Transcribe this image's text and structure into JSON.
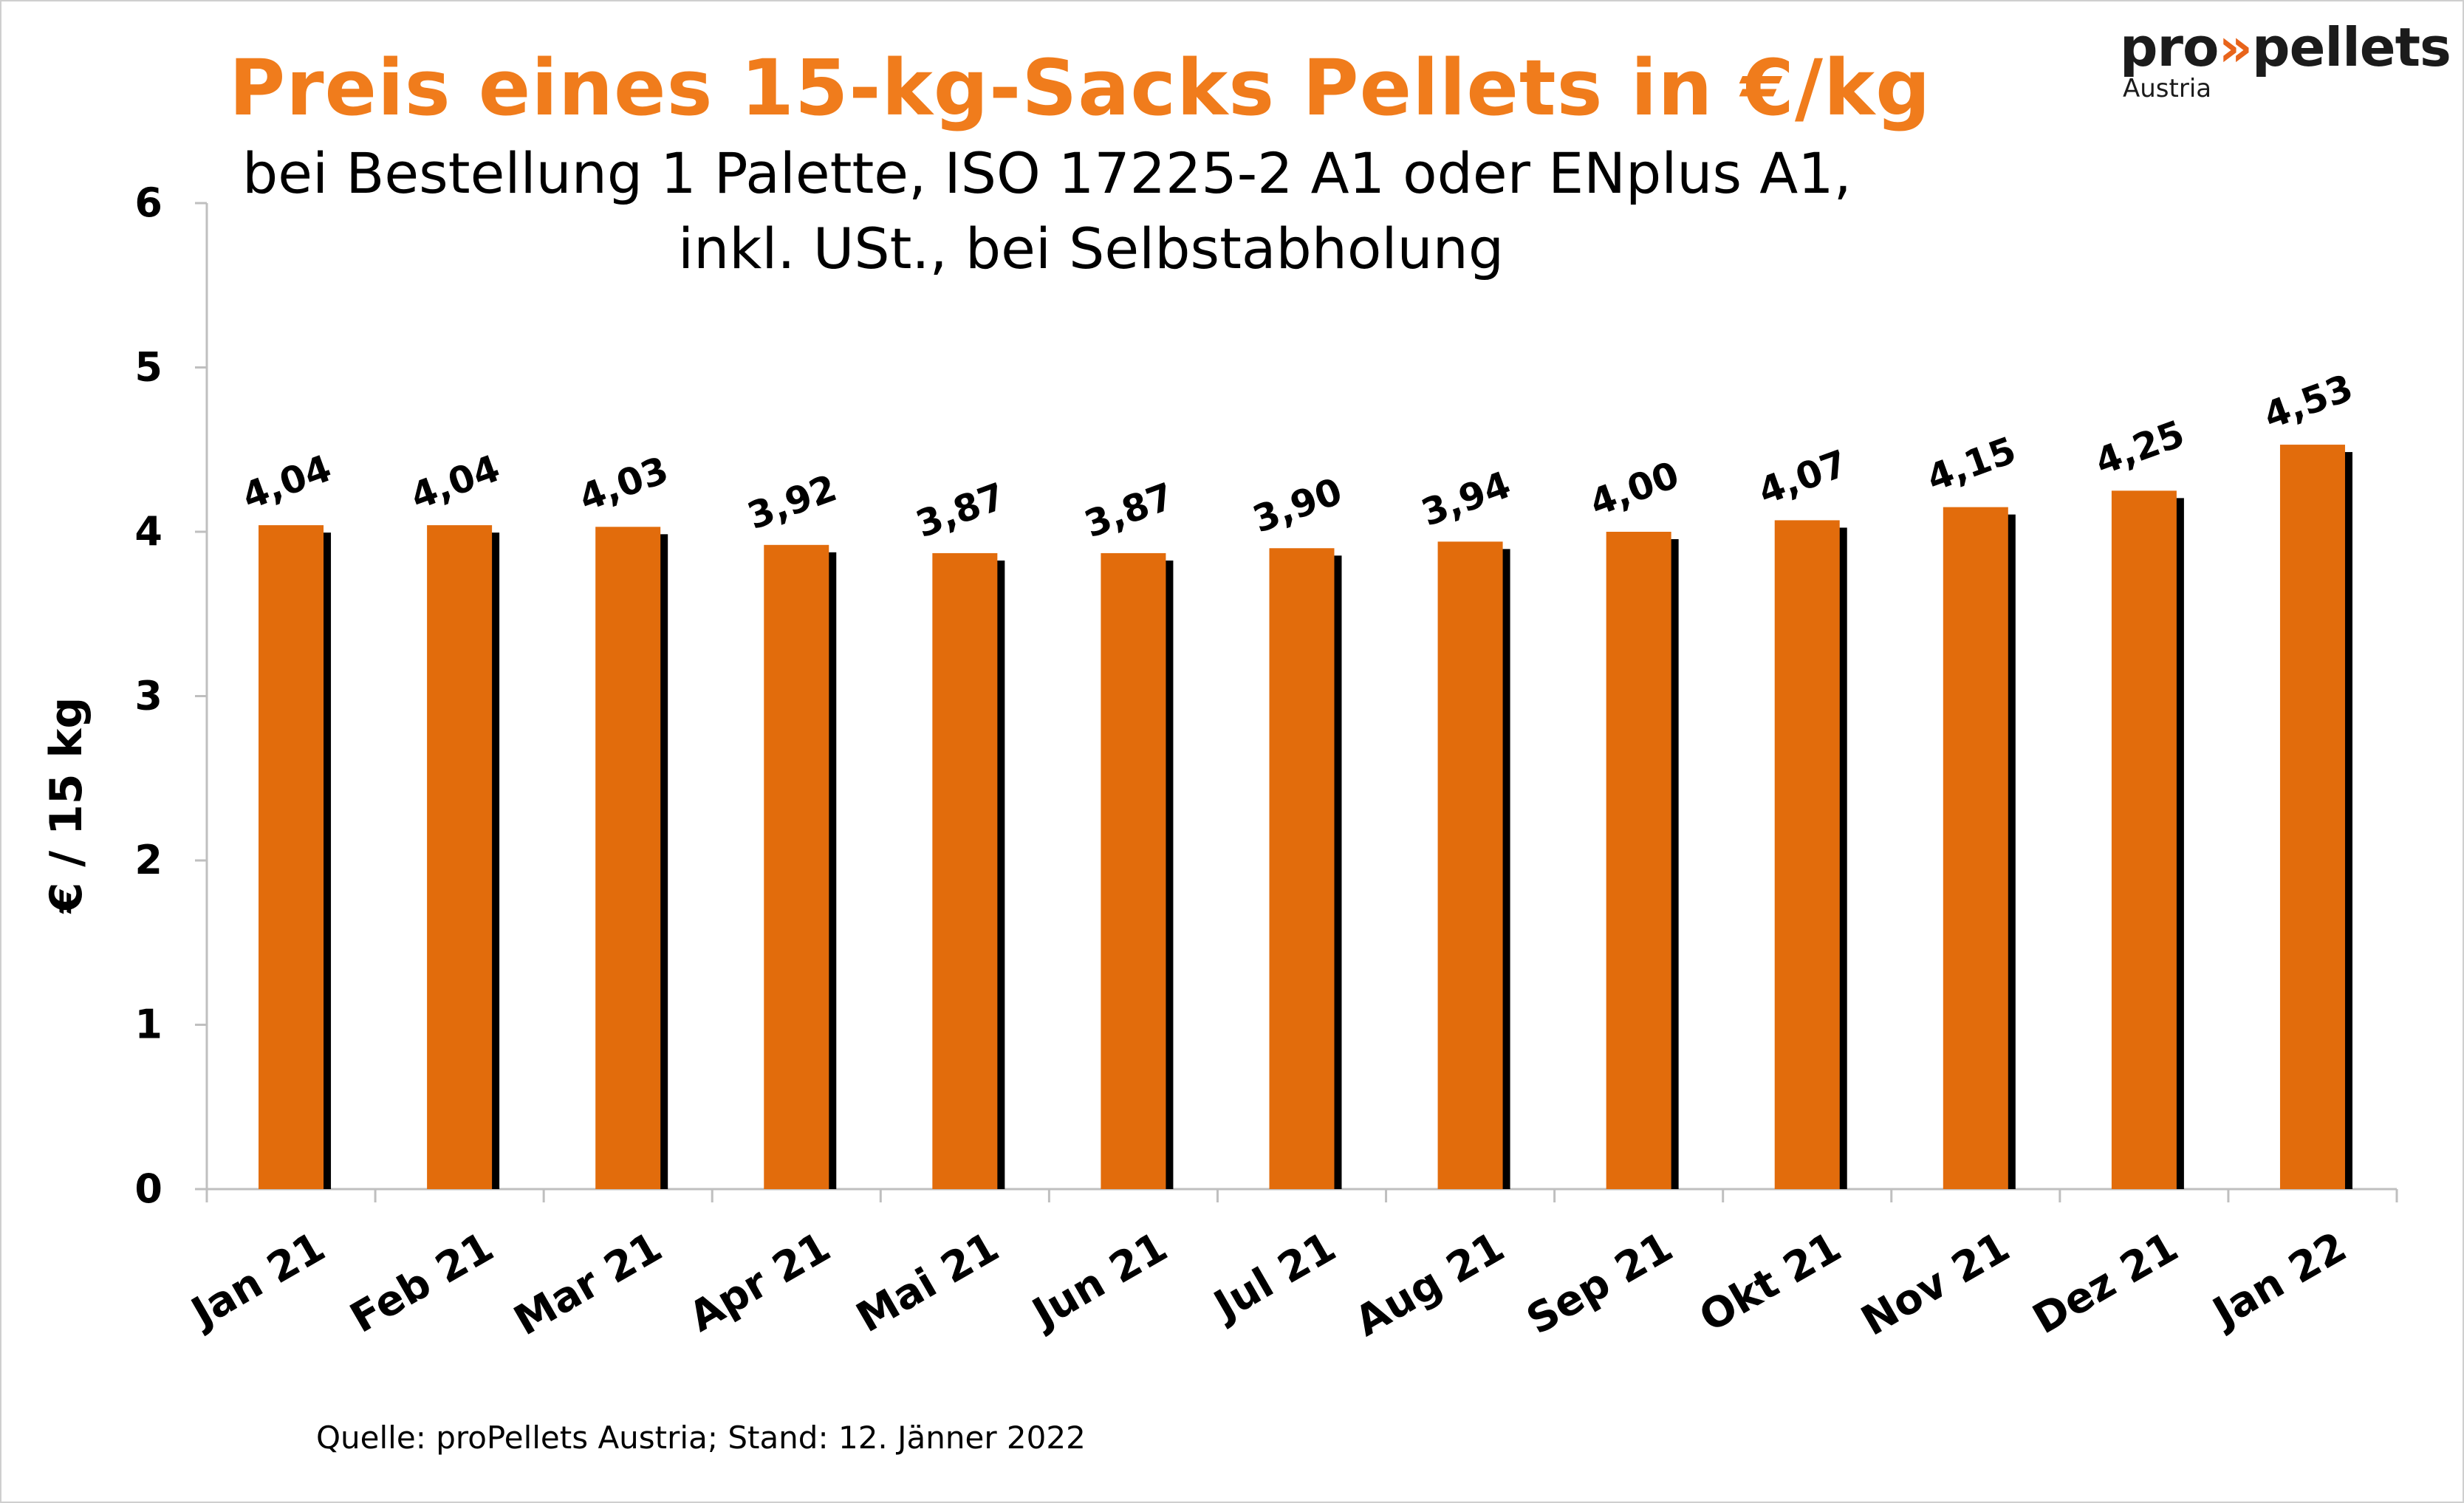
{
  "title": "Preis eines 15-kg-Sacks Pellets in €/kg",
  "subtitle_line1": "bei Bestellung 1 Palette, ISO 17225-2 A1 oder ENplus A1,",
  "subtitle_line2": "inkl. USt., bei Selbstabholung",
  "logo": {
    "brand_left": "pro",
    "chevron": "»",
    "brand_right": "pellets",
    "region": "Austria"
  },
  "source": "Quelle: proPellets Austria; Stand: 12. Jänner 2022",
  "colors": {
    "bar": "#e26c0c",
    "shadow": "#000000",
    "title": "#f07c1c",
    "axis": "#bfbfbf"
  },
  "chart_data": {
    "type": "bar",
    "title": "Preis eines 15-kg-Sacks Pellets in €/kg",
    "xlabel": "",
    "ylabel": "€ / 15 kg",
    "ylim": [
      0,
      6
    ],
    "yticks": [
      "0",
      "1",
      "2",
      "3",
      "4",
      "5",
      "6"
    ],
    "grid": false,
    "categories": [
      "Jan 21",
      "Feb 21",
      "Mar 21",
      "Apr 21",
      "Mai 21",
      "Jun 21",
      "Jul 21",
      "Aug 21",
      "Sep 21",
      "Okt 21",
      "Nov 21",
      "Dez 21",
      "Jan 22"
    ],
    "values": [
      4.04,
      4.04,
      4.03,
      3.92,
      3.87,
      3.87,
      3.9,
      3.94,
      4.0,
      4.07,
      4.15,
      4.25,
      4.53
    ],
    "data_labels": [
      "4,04",
      "4,04",
      "4,03",
      "3,92",
      "3,87",
      "3,87",
      "3,90",
      "3,94",
      "4,00",
      "4,07",
      "4,15",
      "4,25",
      "4,53"
    ]
  }
}
